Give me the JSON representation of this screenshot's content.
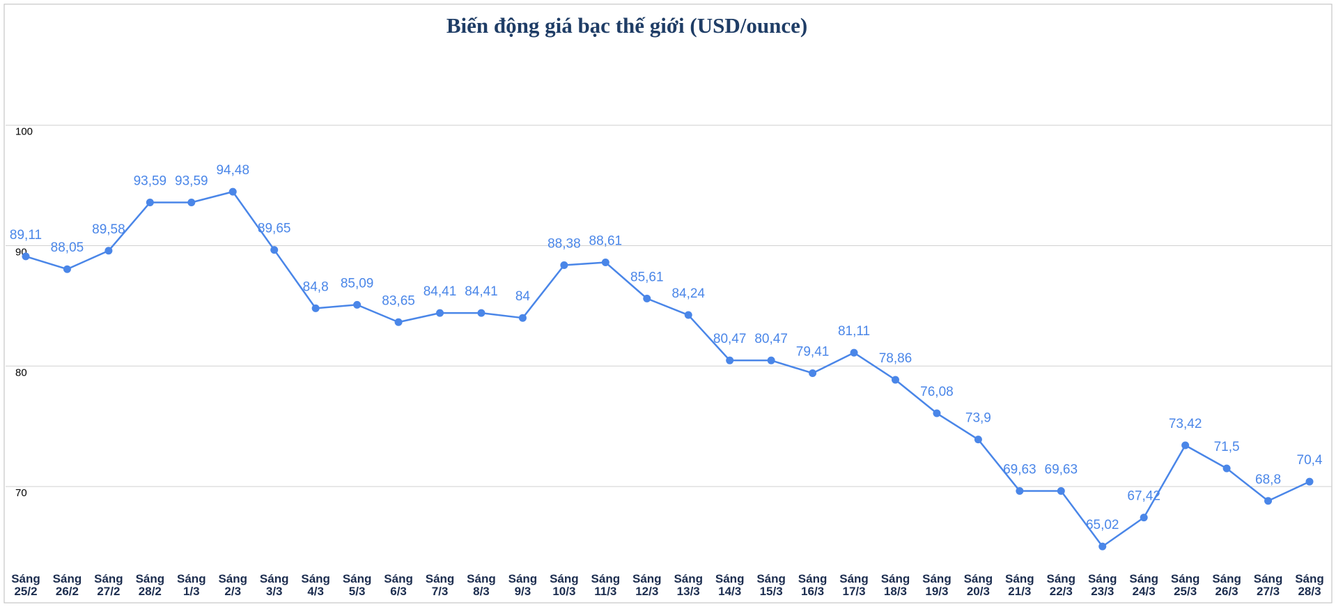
{
  "chart_data": {
    "type": "line",
    "title": "Biến động giá bạc thế giới (USD/ounce)",
    "categories": [
      "Sáng 25/2",
      "Sáng 26/2",
      "Sáng 27/2",
      "Sáng 28/2",
      "Sáng 1/3",
      "Sáng 2/3",
      "Sáng 3/3",
      "Sáng 4/3",
      "Sáng 5/3",
      "Sáng 6/3",
      "Sáng 7/3",
      "Sáng 8/3",
      "Sáng 9/3",
      "Sáng 10/3",
      "Sáng 11/3",
      "Sáng 12/3",
      "Sáng 13/3",
      "Sáng 14/3",
      "Sáng 15/3",
      "Sáng 16/3",
      "Sáng 17/3",
      "Sáng 18/3",
      "Sáng 19/3",
      "Sáng 20/3",
      "Sáng 21/3",
      "Sáng 22/3",
      "Sáng 23/3",
      "Sáng 24/3",
      "Sáng 25/3",
      "Sáng 26/3",
      "Sáng 27/3",
      "Sáng 28/3"
    ],
    "values": [
      89.11,
      88.05,
      89.58,
      93.59,
      93.59,
      94.48,
      89.65,
      84.8,
      85.09,
      83.65,
      84.41,
      84.41,
      84,
      88.38,
      88.61,
      85.61,
      84.24,
      80.47,
      80.47,
      79.41,
      81.11,
      78.86,
      76.08,
      73.9,
      69.63,
      69.63,
      65.02,
      67.42,
      73.42,
      71.5,
      68.8,
      70.4
    ],
    "value_labels": [
      "89,11",
      "88,05",
      "89,58",
      "93,59",
      "93,59",
      "94,48",
      "89,65",
      "84,8",
      "85,09",
      "83,65",
      "84,41",
      "84,41",
      "84",
      "88,38",
      "88,61",
      "85,61",
      "84,24",
      "80,47",
      "80,47",
      "79,41",
      "81,11",
      "78,86",
      "76,08",
      "73,9",
      "69,63",
      "69,63",
      "65,02",
      "67,42",
      "73,42",
      "71,5",
      "68,8",
      "70,4"
    ],
    "color": "#4a86e8",
    "ylim": [
      63,
      110
    ],
    "yticks": [
      70,
      80,
      90,
      100
    ],
    "grid": true
  }
}
